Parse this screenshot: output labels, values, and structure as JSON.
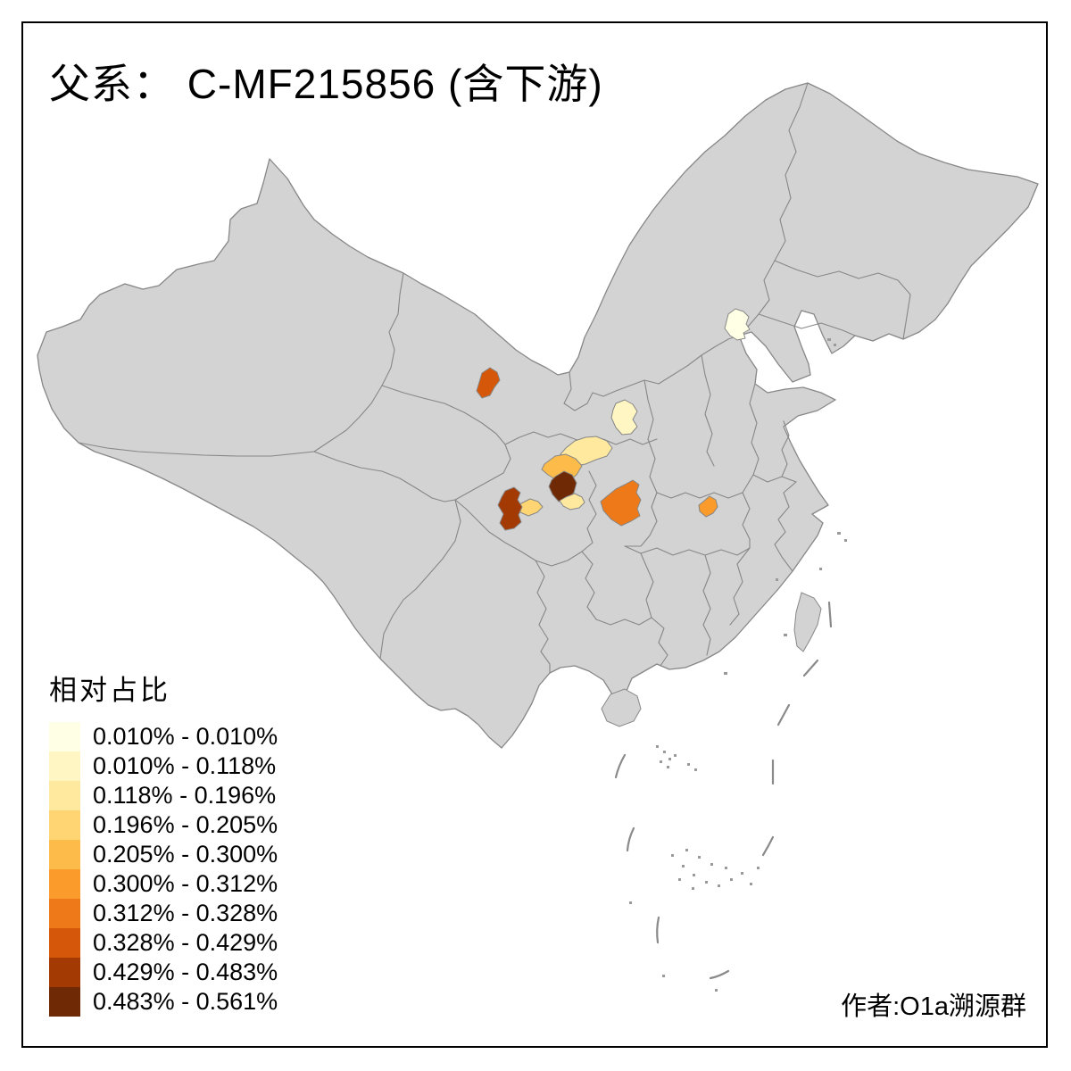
{
  "title": {
    "prefix": "父系：",
    "name": " C-MF215856 (含下游)"
  },
  "legend": {
    "title": "相对占比",
    "classes": [
      {
        "range": "0.010% - 0.010%",
        "color": "#FFFFE5"
      },
      {
        "range": "0.010% - 0.118%",
        "color": "#FFF6C3"
      },
      {
        "range": "0.118% - 0.196%",
        "color": "#FEE99F"
      },
      {
        "range": "0.196% - 0.205%",
        "color": "#FED572"
      },
      {
        "range": "0.205% - 0.300%",
        "color": "#FDBC49"
      },
      {
        "range": "0.300% - 0.312%",
        "color": "#FB9B2B"
      },
      {
        "range": "0.312% - 0.328%",
        "color": "#EE7918"
      },
      {
        "range": "0.328% - 0.429%",
        "color": "#D4570A"
      },
      {
        "range": "0.429% - 0.483%",
        "color": "#A33A04"
      },
      {
        "range": "0.483% - 0.561%",
        "color": "#6F2A05"
      }
    ]
  },
  "credit": "作者:O1a溯源群",
  "map": {
    "land_color": "#D3D3D3",
    "border_color": "#878787",
    "background": "#FFFFFF",
    "regions": [
      {
        "id": "highlight-northeast-beijing",
        "legend_class": 1
      },
      {
        "id": "highlight-north-shaanxi",
        "legend_class": 2
      },
      {
        "id": "highlight-south-shaanxi",
        "legend_class": 3
      },
      {
        "id": "highlight-sichuan-northeast",
        "legend_class": 5
      },
      {
        "id": "highlight-sichuan-center",
        "legend_class": 10
      },
      {
        "id": "highlight-sichuan-south",
        "legend_class": 3
      },
      {
        "id": "highlight-sichuan-west-small",
        "legend_class": 4
      },
      {
        "id": "highlight-sichuan-west-tall",
        "legend_class": 9
      },
      {
        "id": "highlight-chongqing",
        "legend_class": 7
      },
      {
        "id": "highlight-hunan",
        "legend_class": 6
      },
      {
        "id": "highlight-qinghai",
        "legend_class": 8
      }
    ]
  }
}
